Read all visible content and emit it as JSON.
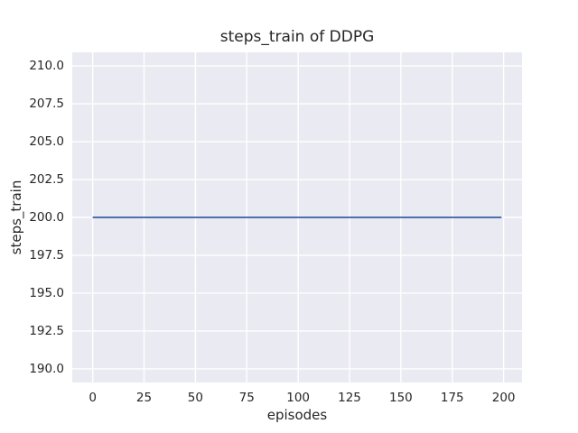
{
  "chart_data": {
    "type": "line",
    "title": "steps_train of DDPG",
    "xlabel": "episodes",
    "ylabel": "steps_train",
    "xlim": [
      -9.95,
      208.95
    ],
    "ylim": [
      189.1,
      210.9
    ],
    "xticks": [
      0,
      25,
      50,
      75,
      100,
      125,
      150,
      175,
      200
    ],
    "xtick_labels": [
      "0",
      "25",
      "50",
      "75",
      "100",
      "125",
      "150",
      "175",
      "200"
    ],
    "yticks": [
      190.0,
      192.5,
      195.0,
      197.5,
      200.0,
      202.5,
      205.0,
      207.5,
      210.0
    ],
    "ytick_labels": [
      "190.0",
      "192.5",
      "195.0",
      "197.5",
      "200.0",
      "202.5",
      "205.0",
      "207.5",
      "210.0"
    ],
    "grid": true,
    "legend": false,
    "series": [
      {
        "name": "steps_train",
        "color": "#4c72b0",
        "constant_value": 200,
        "x": [
          0,
          199
        ],
        "y": [
          200,
          200
        ]
      }
    ],
    "styles": {
      "figure_bg": "#ffffff",
      "axes_bg": "#eaeaf2",
      "grid_color": "#ffffff",
      "text_color": "#262626",
      "line_width": 2
    }
  }
}
